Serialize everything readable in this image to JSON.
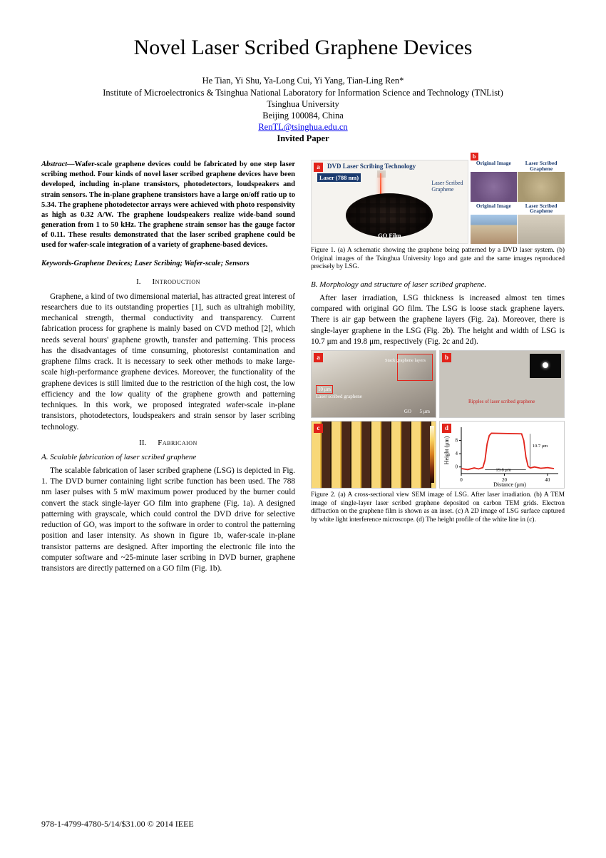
{
  "title": "Novel Laser Scribed Graphene Devices",
  "authors": "He Tian, Yi Shu, Ya-Long Cui, Yi Yang, Tian-Ling Ren*",
  "affiliation1": "Institute of Microelectronics & Tsinghua National Laboratory for Information Science and Technology (TNList)",
  "affiliation2": "Tsinghua University",
  "affiliation3": "Beijing 100084, China",
  "email": "RenTL@tsinghua.edu.cn",
  "invited": "Invited Paper",
  "abstract_label": "Abstract—",
  "abstract": "Wafer-scale graphene devices could be fabricated by one step laser scribing method. Four kinds of novel laser scribed graphene devices have been developed, including in-plane transistors, photodetectors, loudspeakers and strain sensors. The in-plane graphene transistors have a large on/off ratio up to 5.34. The graphene photodetector arrays were achieved with photo responsivity as high as 0.32 A/W. The graphene loudspeakers realize wide-band sound generation from 1 to 50 kHz. The graphene strain sensor has the gauge factor of 0.11. These results demonstrated that the laser scribed graphene could be used for wafer-scale integration of a variety of graphene-based devices.",
  "keywords": "Keywords-Graphene Devices; Laser Scribing; Wafer-scale; Sensors",
  "sec1": {
    "num": "I.",
    "name": "Introduction"
  },
  "intro": "Graphene, a kind of two dimensional material, has attracted great interest of researchers due to its outstanding properties [1], such as ultrahigh mobility, mechanical strength, thermal conductivity and transparency. Current fabrication process for graphene is mainly based on CVD method [2], which needs several hours' graphene growth, transfer and patterning. This process has the disadvantages of time consuming, photoresist contamination and graphene films crack. It is necessary to seek other methods to make large-scale high-performance graphene devices. Moreover, the functionality of the graphene devices is still limited due to the restriction of the high cost, the low efficiency and the low quality of the graphene growth and patterning techniques. In this work, we proposed integrated wafer-scale in-plane transistors, photodetectors, loudspeakers and strain sensor by laser scribing technology.",
  "sec2": {
    "num": "II.",
    "name": "Fabricaion"
  },
  "sub2a": "A.   Scalable fabrication of laser scribed graphene",
  "para2a": "The scalable fabrication of laser scribed graphene (LSG) is depicted in Fig. 1. The DVD burner containing light scribe function has been used. The 788 nm laser pulses with 5 mW maximum power produced by the burner could convert the stack single-layer GO film into graphene (Fig. 1a). A designed patterning with grayscale, which could control the DVD drive for selective reduction of GO, was import to the software in order to control the patterning position and laser intensity. As shown in figure 1b, wafer-scale in-plane transistor patterns are designed. After importing the electronic file into the computer software and ~25-minute laser scribing in DVD burner, graphene transistors are directly patterned on a GO film (Fig. 1b).",
  "fig1": {
    "badge_a": "a",
    "badge_b": "b",
    "title_a": "DVD Laser Scribing Technology",
    "laser_label": "Laser (788 nm)",
    "lsg_label": "Laser Scribed\nGraphene",
    "go_label": "GO Film",
    "b_orig": "Original Image",
    "b_lsg": "Laser Scribed Graphene"
  },
  "fig1cap": "Figure 1. (a) A schematic showing the graphene being patterned by a DVD laser system. (b) Original images of the Tsinghua University logo and gate and the same images reproduced precisely by LSG.",
  "sub2b": "B.   Morphology and structure of laser scribed graphene.",
  "para2b": "After laser irradiation, LSG thickness is increased almost ten times compared with original GO film. The LSG is loose stack graphene layers. There is air gap between the graphene layers (Fig. 2a). Moreover, there is single-layer graphene in the LSG (Fig. 2b). The height and width of LSG is 10.7 μm and 19.8 μm, respectively (Fig. 2c and 2d).",
  "fig2": {
    "a": "a",
    "b": "b",
    "c": "c",
    "d": "d",
    "stack_label": "Stack graphene layers",
    "lsg_label": "Laser scribed graphene",
    "go_label": "GO",
    "scale_10": "10 μm",
    "scale_1": "1 μm",
    "scale_5": "5 μm",
    "ripples": "Ripples of laser scribed graphene",
    "height_label": "10.7 μm",
    "width_label": "19.8 μm",
    "chart": {
      "type": "line",
      "xlabel": "Distance (μm)",
      "ylabel": "Height (μm)",
      "xlim": [
        0,
        45
      ],
      "ylim": [
        -2,
        12
      ],
      "xticks": [
        0,
        20,
        40
      ],
      "yticks": [
        0,
        4,
        8
      ],
      "line_color": "#e2231a",
      "line_width": 1.8,
      "x": [
        0,
        3,
        6,
        8,
        10,
        11,
        12,
        13,
        14,
        28,
        29,
        30,
        31,
        32,
        34,
        37,
        40,
        43
      ],
      "y": [
        -0.5,
        -0.8,
        -0.3,
        -0.6,
        -0.2,
        2,
        7,
        9.5,
        10.2,
        10.0,
        8,
        3,
        0.2,
        -0.3,
        0,
        -0.4,
        -0.2,
        -0.5
      ],
      "bg": "#ffffff",
      "axis_color": "#000000",
      "tick_fontsize": 7,
      "label_fontsize": 8
    }
  },
  "fig2cap": "Figure 2. (a) A cross-sectional view SEM image of LSG. After laser irradiation. (b) A TEM image of single-layer laser scribed graphene deposited on carbon TEM grids. Electron diffraction on the graphene film is shown as an inset. (c) A 2D image of LSG surface captured by white light interference microscope. (d) The height profile of the white line in (c).",
  "footer": "978-1-4799-4780-5/14/$31.00 © 2014 IEEE"
}
